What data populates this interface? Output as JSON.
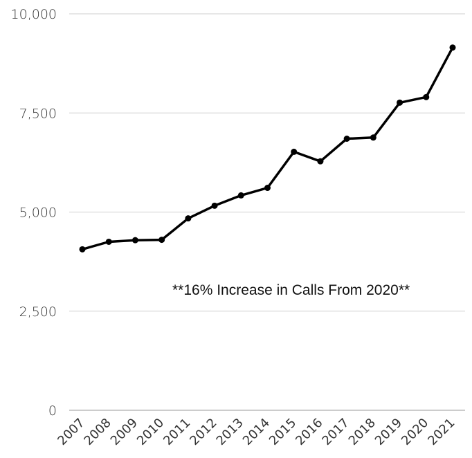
{
  "chart_data": {
    "type": "line",
    "x": [
      "2007",
      "2008",
      "2009",
      "2010",
      "2011",
      "2012",
      "2013",
      "2014",
      "2015",
      "2016",
      "2017",
      "2018",
      "2019",
      "2020",
      "2021"
    ],
    "series": [
      {
        "values": [
          4060,
          4250,
          4290,
          4300,
          4840,
          5160,
          5420,
          5610,
          6520,
          6280,
          6850,
          6880,
          7760,
          7900,
          9150
        ]
      }
    ],
    "ylim": [
      0,
      10000
    ],
    "yticks": [
      0,
      2500,
      5000,
      7500,
      10000
    ],
    "ytick_labels": [
      "0",
      "2,500",
      "5,000",
      "7,500",
      "10,000"
    ],
    "grid": true,
    "annotation": "**16%  Increase in Calls From 2020**",
    "line_color": "#000000"
  }
}
